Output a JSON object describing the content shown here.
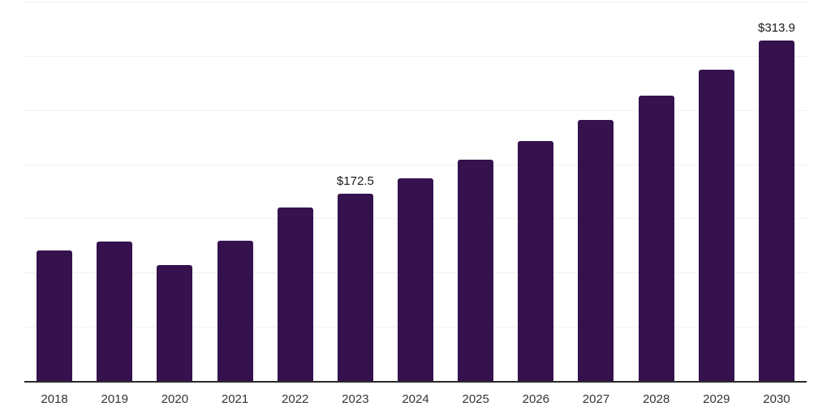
{
  "chart_data": {
    "type": "bar",
    "categories": [
      "2018",
      "2019",
      "2020",
      "2021",
      "2022",
      "2023",
      "2024",
      "2025",
      "2026",
      "2027",
      "2028",
      "2029",
      "2030"
    ],
    "values": [
      120.6,
      128.8,
      107.2,
      129.6,
      160.1,
      172.5,
      186.9,
      204.0,
      221.2,
      240.5,
      262.9,
      287.5,
      313.9
    ],
    "data_labels": {
      "2023": "$172.5",
      "2030": "$313.9"
    },
    "title": "",
    "xlabel": "",
    "ylabel": "",
    "ylim": [
      0,
      350
    ],
    "grid_step": 50,
    "grid": true,
    "legend": false,
    "colors": {
      "bar": "#35114E",
      "axis_line": "#2a2a2a",
      "gridline": "#f1f1f1",
      "tick_label": "#333333",
      "data_label": "#1a1a1a",
      "background": "#ffffff"
    }
  }
}
